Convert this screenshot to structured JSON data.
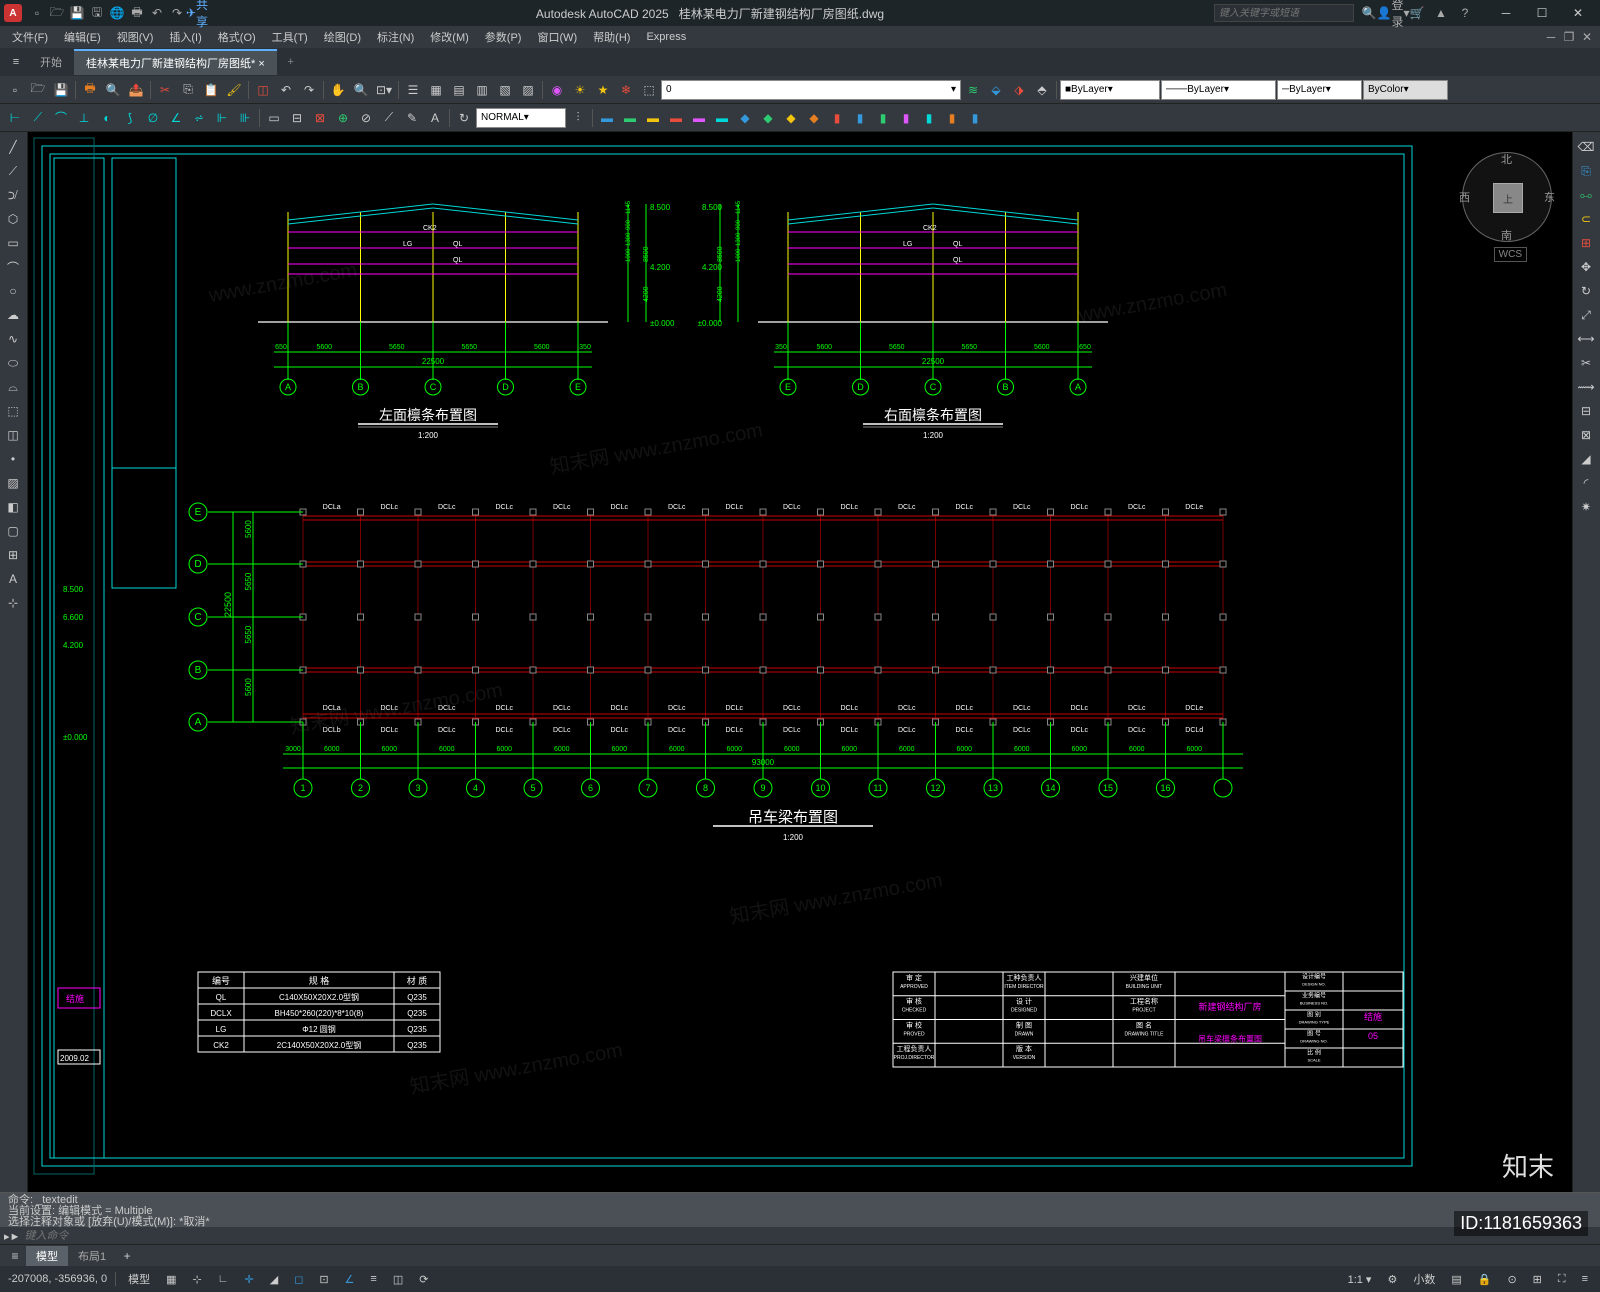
{
  "app": {
    "name": "Autodesk AutoCAD 2025",
    "file": "桂林某电力厂新建钢结构厂房图纸.dwg",
    "searchPlaceholder": "键入关键字或短语",
    "login": "登录"
  },
  "menu": [
    "文件(F)",
    "编辑(E)",
    "视图(V)",
    "插入(I)",
    "格式(O)",
    "工具(T)",
    "绘图(D)",
    "标注(N)",
    "修改(M)",
    "参数(P)",
    "窗口(W)",
    "帮助(H)",
    "Express"
  ],
  "tabs": {
    "start": "开始",
    "doc": "桂林某电力厂新建钢结构厂房图纸*"
  },
  "layerSel": "0",
  "bylayer": "ByLayer",
  "bycolor": "ByColor",
  "normal": "NORMAL",
  "viewcube": {
    "top": "上",
    "n": "北",
    "s": "南",
    "e": "东",
    "w": "西",
    "wcs": "WCS"
  },
  "elevations": {
    "leftTitle": "左面檩条布置图",
    "rightTitle": "右面檩条布置图",
    "scale": "1:200",
    "topElev": "8.500",
    "midElev": "4.200",
    "baseElev": "±0.000",
    "totalWidth": "22500",
    "bay": "5600",
    "bay2": "5650",
    "edge1": "650",
    "edge2": "350",
    "hdim1": "1145",
    "hdim2": "900",
    "hdim3": "1300",
    "hdim4": "1000",
    "hdim5": "8500",
    "hdim6": "4200",
    "labels": [
      "CK2",
      "LG",
      "QL",
      "QL"
    ],
    "gridL": [
      "A",
      "B",
      "C",
      "D",
      "E"
    ],
    "gridR": [
      "E",
      "D",
      "C",
      "B",
      "A"
    ]
  },
  "plan": {
    "title": "吊车梁布置图",
    "scale": "1:200",
    "gridV": [
      "E",
      "D",
      "C",
      "B",
      "A"
    ],
    "gridH": [
      "1",
      "2",
      "3",
      "4",
      "5",
      "6",
      "7",
      "8",
      "9",
      "10",
      "11",
      "12",
      "13",
      "14",
      "15",
      "16"
    ],
    "vDims": [
      "5600",
      "5650",
      "5650",
      "5600"
    ],
    "vTotal": "22500",
    "hDim": "6000",
    "hEdge": "3000",
    "hTotal": "93000",
    "topLabels": [
      "DCLa",
      "DCLc",
      "DCLc",
      "DCLc",
      "DCLc",
      "DCLc",
      "DCLc",
      "DCLc",
      "DCLc",
      "DCLc",
      "DCLc",
      "DCLc",
      "DCLc",
      "DCLc",
      "DCLc",
      "DCLe"
    ],
    "midLabels": [
      "DCLa",
      "DCLc",
      "DCLc",
      "DCLc",
      "DCLc",
      "DCLc",
      "DCLc",
      "DCLc",
      "DCLc",
      "DCLc",
      "DCLc",
      "DCLc",
      "DCLc",
      "DCLc",
      "DCLc",
      "DCLe"
    ],
    "botLabels": [
      "DCLb",
      "DCLc",
      "DCLc",
      "DCLc",
      "DCLc",
      "DCLc",
      "DCLc",
      "DCLc",
      "DCLc",
      "DCLc",
      "DCLc",
      "DCLc",
      "DCLc",
      "DCLc",
      "DCLc",
      "DCLd"
    ]
  },
  "table": {
    "headers": [
      "编号",
      "规 格",
      "材 质"
    ],
    "rows": [
      [
        "QL",
        "C140X50X20X2.0型钢",
        "Q235"
      ],
      [
        "DCLX",
        "BH450*260(220)*8*10(8)",
        "Q235"
      ],
      [
        "LG",
        "Φ12 圆钢",
        "Q235"
      ],
      [
        "CK2",
        "2C140X50X20X2.0型钢",
        "Q235"
      ]
    ]
  },
  "titleblock": {
    "approved": "审 定\nAPPROVED",
    "checked": "审 核\nCHECKED",
    "proved": "审 校\nPROVED",
    "projDir": "工程负责人\nPROJ.DIRECTOR",
    "itemDir": "工种负责人\nITEM DIRECTOR",
    "designed": "设 计\nDESIGNED",
    "drawn": "制 图\nDRAWN",
    "version": "版 本\nVERSION",
    "building": "兴建单位\nBUILDING UNIT",
    "projName": "工程名称\nPROJECT",
    "drawTitle": "图 名\nDRAWING TITLE",
    "designNo": "设计编号\nDESIGN NO.",
    "businessNo": "业务编号\nBUSINESS NO.",
    "drawType": "图 别\nDRAWING TYPE",
    "drawNo": "图 号\nDRAWING NO.",
    "scale": "比 例\nSCALE",
    "projVal": "新建钢结构厂房",
    "titleVal": "吊车梁檩条布置图",
    "typeVal": "结施",
    "noVal": "05"
  },
  "sideElev": {
    "e1": "8.500",
    "e2": "6.600",
    "e3": "4.200",
    "e4": "±0.000",
    "datelab": "2009.02",
    "red": "结施"
  },
  "cmd": {
    "l1": "命令:  _textedit",
    "l2": "当前设置: 编辑模式 = Multiple",
    "l3": "选择注释对象或 [放弃(U)/模式(M)]: *取消*",
    "prompt": "▸►",
    "placeholder": "键入命令"
  },
  "modelTabs": {
    "model": "模型",
    "layout1": "布局1"
  },
  "status": {
    "coords": "-207008, -356936, 0",
    "model": "模型",
    "decimal": "小数"
  },
  "id": "ID:1181659363",
  "colors": {
    "cyan": "#00d8d8",
    "green": "#00ff00",
    "magenta": "#ff00ff",
    "red": "#ff3333",
    "yellow": "#ffff00",
    "white": "#ffffff",
    "gray": "#888888",
    "darkred": "#cc0000"
  }
}
